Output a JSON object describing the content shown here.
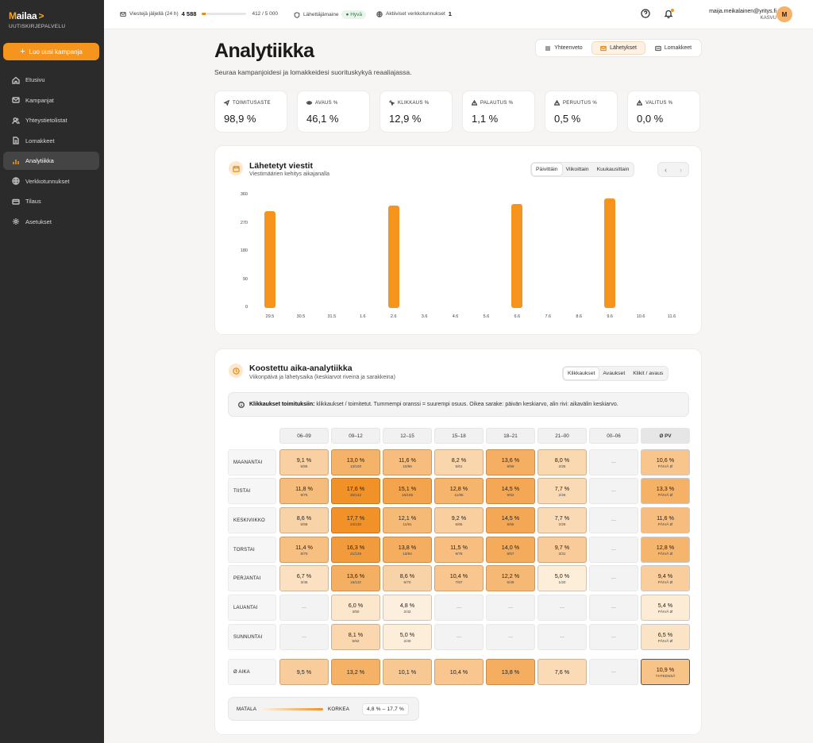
{
  "app": {
    "name_first": "M",
    "name_rest": "ailaa",
    "arrow": ">",
    "tagline": "UUTISKIRJEPALVELU"
  },
  "sidebar": {
    "new_button": "Luo uusi kampanja",
    "items": [
      {
        "label": "Etusivu",
        "icon": "home-icon"
      },
      {
        "label": "Kampanjat",
        "icon": "mail-icon"
      },
      {
        "label": "Yhteystietolistat",
        "icon": "users-icon"
      },
      {
        "label": "Lomakkeet",
        "icon": "document-icon"
      },
      {
        "label": "Analytiikka",
        "icon": "chart-icon",
        "active": true
      },
      {
        "label": "Verkkotunnukset",
        "icon": "globe-icon"
      },
      {
        "label": "Tilaus",
        "icon": "card-icon"
      },
      {
        "label": "Asetukset",
        "icon": "gear-icon"
      }
    ]
  },
  "topbar": {
    "quota_label": "Viestejä jäljellä (24 h)",
    "quota_value": "4 588",
    "quota_fraction": 0.082,
    "quota_count": "412 / 5 000",
    "reputation_label": "Lähettäjämaine",
    "reputation_value": "Hyvä",
    "domains_label": "Aktiiviset verkkotunnukset",
    "domains_value": "1",
    "user_email": "maija.meikalainen@yritys.fi",
    "user_plan": "KASVU",
    "avatar_initial": "M"
  },
  "page": {
    "title": "Analytiikka",
    "subtitle": "Seuraa kampanjoidesi ja lomakkeidesi suorituskykyä reaaliajassa.",
    "tabs": [
      "Yhteenveto",
      "Lähetykset",
      "Lomakkeet"
    ],
    "active_tab": "Lähetykset"
  },
  "kpis": [
    {
      "label": "TOIMITUSASTE",
      "value": "98,9 %",
      "icon": "send-icon"
    },
    {
      "label": "AVAUS %",
      "value": "46,1 %",
      "icon": "eye-icon"
    },
    {
      "label": "KLIKKAUS %",
      "value": "12,9 %",
      "icon": "click-icon"
    },
    {
      "label": "PALAUTUS %",
      "value": "1,1 %",
      "icon": "warning-icon"
    },
    {
      "label": "PERUUTUS %",
      "value": "0,5 %",
      "icon": "warning-icon"
    },
    {
      "label": "VALITUS %",
      "value": "0,0 %",
      "icon": "warning-icon"
    }
  ],
  "sent_card": {
    "title": "Lähetetyt viestit",
    "subtitle": "Viestimäärien kehitys aikajanalla",
    "periods": [
      "Päivittäin",
      "Viikoittain",
      "Kuukausittain"
    ],
    "active_period": "Päivittäin"
  },
  "chart_data": {
    "type": "bar",
    "categories": [
      "29.5",
      "30.5",
      "31.5",
      "1.6",
      "2.6",
      "3.6",
      "4.6",
      "5.6",
      "6.6",
      "7.6",
      "8.6",
      "9.6",
      "10.6",
      "11.6"
    ],
    "values": [
      310,
      0,
      0,
      0,
      326,
      0,
      0,
      0,
      332,
      0,
      0,
      350,
      0,
      0
    ],
    "yticks": [
      "0",
      "90",
      "180",
      "270",
      "360"
    ],
    "ylim": [
      0,
      360
    ],
    "color": "#f5951e",
    "grid": false
  },
  "heat_card": {
    "title": "Koostettu aika-analytiikka",
    "subtitle": "Viikonpäivä ja lähetysaika (keskiarvot riveinä ja sarakkeina)",
    "modes": [
      "Klikkaukset",
      "Avaukset",
      "Klikit / avaus"
    ],
    "active_mode": "Klikkaukset",
    "info_bold": "Klikkaukset toimituksiin:",
    "info_text": "klikkaukset / toimitetut. Tummempi oranssi = suurempi osuus. Oikea sarake: päivän keskiarvo, alin rivi: aikavälin keskiarvo.",
    "columns": [
      "06–09",
      "09–12",
      "12–15",
      "15–18",
      "18–21",
      "21–00",
      "00–06",
      "Ø PV"
    ],
    "rows": [
      {
        "label": "MAANANTAI",
        "cells": [
          {
            "p": "9,1 %",
            "s": "5/55"
          },
          {
            "p": "13,0 %",
            "s": "13/100"
          },
          {
            "p": "11,6 %",
            "s": "10/86"
          },
          {
            "p": "8,2 %",
            "s": "5/61"
          },
          {
            "p": "13,6 %",
            "s": "8/59"
          },
          {
            "p": "8,0 %",
            "s": "2/25"
          },
          {
            "p": "—",
            "s": ""
          }
        ],
        "avg": "10,6 %",
        "avg_sub": "PÄIVÄ Ø"
      },
      {
        "label": "TIISTAI",
        "cells": [
          {
            "p": "11,8 %",
            "s": "9/76"
          },
          {
            "p": "17,6 %",
            "s": "25/142"
          },
          {
            "p": "15,1 %",
            "s": "16/106"
          },
          {
            "p": "12,8 %",
            "s": "11/86"
          },
          {
            "p": "14,5 %",
            "s": "9/62"
          },
          {
            "p": "7,7 %",
            "s": "2/26"
          },
          {
            "p": "—",
            "s": ""
          }
        ],
        "avg": "13,3 %",
        "avg_sub": "PÄIVÄ Ø"
      },
      {
        "label": "KESKIVIIKKO",
        "cells": [
          {
            "p": "8,6 %",
            "s": "5/58"
          },
          {
            "p": "17,7 %",
            "s": "23/130"
          },
          {
            "p": "12,1 %",
            "s": "11/91"
          },
          {
            "p": "9,2 %",
            "s": "6/65"
          },
          {
            "p": "14,5 %",
            "s": "8/55"
          },
          {
            "p": "7,7 %",
            "s": "2/26"
          },
          {
            "p": "—",
            "s": ""
          }
        ],
        "avg": "11,6 %",
        "avg_sub": "PÄIVÄ Ø"
      },
      {
        "label": "TORSTAI",
        "cells": [
          {
            "p": "11,4 %",
            "s": "8/70"
          },
          {
            "p": "16,3 %",
            "s": "21/129"
          },
          {
            "p": "13,8 %",
            "s": "13/94"
          },
          {
            "p": "11,5 %",
            "s": "9/78"
          },
          {
            "p": "14,0 %",
            "s": "8/57"
          },
          {
            "p": "9,7 %",
            "s": "3/31"
          },
          {
            "p": "—",
            "s": ""
          }
        ],
        "avg": "12,8 %",
        "avg_sub": "PÄIVÄ Ø"
      },
      {
        "label": "PERJANTAI",
        "cells": [
          {
            "p": "6,7 %",
            "s": "3/45"
          },
          {
            "p": "13,6 %",
            "s": "15/110"
          },
          {
            "p": "8,6 %",
            "s": "6/70"
          },
          {
            "p": "10,4 %",
            "s": "7/67"
          },
          {
            "p": "12,2 %",
            "s": "6/49"
          },
          {
            "p": "5,0 %",
            "s": "1/20"
          },
          {
            "p": "—",
            "s": ""
          }
        ],
        "avg": "9,4 %",
        "avg_sub": "PÄIVÄ Ø"
      },
      {
        "label": "LAUANTAI",
        "cells": [
          {
            "p": "—",
            "s": ""
          },
          {
            "p": "6,0 %",
            "s": "3/50"
          },
          {
            "p": "4,8 %",
            "s": "2/42"
          },
          {
            "p": "—",
            "s": ""
          },
          {
            "p": "—",
            "s": ""
          },
          {
            "p": "—",
            "s": ""
          },
          {
            "p": "—",
            "s": ""
          }
        ],
        "avg": "5,4 %",
        "avg_sub": "PÄIVÄ Ø"
      },
      {
        "label": "SUNNUNTAI",
        "cells": [
          {
            "p": "—",
            "s": ""
          },
          {
            "p": "8,1 %",
            "s": "5/62"
          },
          {
            "p": "5,0 %",
            "s": "2/40"
          },
          {
            "p": "—",
            "s": ""
          },
          {
            "p": "—",
            "s": ""
          },
          {
            "p": "—",
            "s": ""
          },
          {
            "p": "—",
            "s": ""
          }
        ],
        "avg": "6,5 %",
        "avg_sub": "PÄIVÄ Ø"
      }
    ],
    "avg_row": {
      "label": "Ø AIKA",
      "cells": [
        "9,5 %",
        "13,2 %",
        "10,1 %",
        "10,4 %",
        "13,8 %",
        "7,6 %",
        "—"
      ],
      "total": "10,9 %",
      "total_sub": "YHTEENSÄ"
    },
    "legend": {
      "low": "MATALA",
      "high": "KORKEA",
      "range": "4,8 % – 17,7 %"
    }
  }
}
